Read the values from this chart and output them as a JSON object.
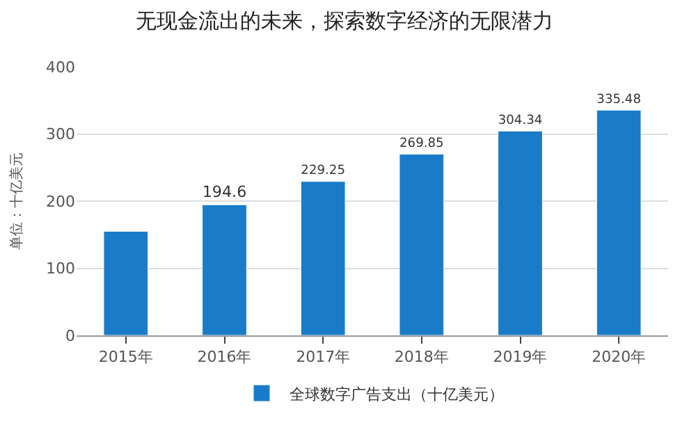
{
  "chart_data": {
    "type": "bar",
    "title": "无现金流出的未来，探索数字经济的无限潜力",
    "ylabel": "单位：十亿美元",
    "categories": [
      "2015年",
      "2016年",
      "2017年",
      "2018年",
      "2019年",
      "2020年"
    ],
    "series": [
      {
        "name": "全球数字广告支出（十亿美元）",
        "color": "#1a7cc8",
        "values": [
          155,
          194.6,
          229.25,
          269.85,
          304.34,
          335.48
        ],
        "value_labels": [
          null,
          "194.6",
          "229.25",
          "269.85",
          "304.34",
          "335.48"
        ]
      }
    ],
    "ylim": [
      0,
      400
    ],
    "yticks": [
      0,
      100,
      200,
      300,
      400
    ],
    "grid": "y",
    "legend": "bottom"
  }
}
